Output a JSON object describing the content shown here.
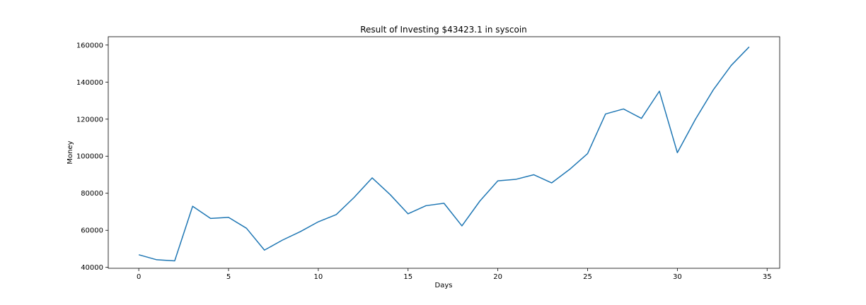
{
  "chart_data": {
    "type": "line",
    "title": "Result of Investing $43423.1 in syscoin",
    "xlabel": "Days",
    "ylabel": "Money",
    "xlim": [
      -1.7,
      35.7
    ],
    "ylim": [
      39500,
      164500
    ],
    "xticks": [
      0,
      5,
      10,
      15,
      20,
      25,
      30,
      35
    ],
    "yticks": [
      40000,
      60000,
      80000,
      100000,
      120000,
      140000,
      160000
    ],
    "grid": false,
    "line_color": "#1f77b4",
    "series": [
      {
        "x": [
          0,
          1,
          2,
          3,
          4,
          5,
          6,
          7,
          8,
          9,
          10,
          11,
          12,
          13,
          14,
          15,
          16,
          17,
          18,
          19,
          20,
          21,
          22,
          23,
          24,
          25,
          26,
          27,
          28,
          29,
          30,
          31,
          32,
          33,
          34
        ],
        "values": [
          46800,
          44100,
          43500,
          73000,
          66400,
          67000,
          61100,
          49300,
          54700,
          59300,
          64600,
          68500,
          77800,
          88300,
          79300,
          68900,
          73300,
          74600,
          62400,
          75800,
          86700,
          87500,
          90000,
          85600,
          92900,
          101400,
          122800,
          125500,
          120400,
          135100,
          101900,
          119800,
          135800,
          149000,
          159000
        ]
      }
    ]
  }
}
